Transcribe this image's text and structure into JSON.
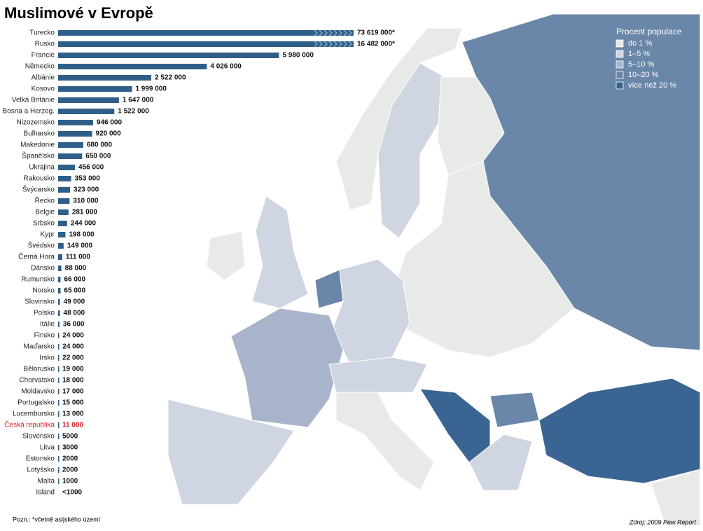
{
  "chart_data": {
    "type": "bar",
    "orientation": "horizontal",
    "title": "Muslimové v Evropě",
    "categories": [
      "Turecko",
      "Rusko",
      "Francie",
      "Německo",
      "Albánie",
      "Kosovo",
      "Velká Británie",
      "Bosna a Herzeg.",
      "Nizozemsko",
      "Bulharsko",
      "Makedonie",
      "Španělsko",
      "Ukrajina",
      "Rakousko",
      "Švýcarsko",
      "Řecko",
      "Belgie",
      "Srbsko",
      "Kypr",
      "Švédsko",
      "Černá Hora",
      "Dánsko",
      "Rumunsko",
      "Norsko",
      "Slovinsko",
      "Polsko",
      "Itálie",
      "Finsko",
      "Maďarsko",
      "Irsko",
      "Bělorusko",
      "Chorvatsko",
      "Moldavsko",
      "Portugalsko",
      "Lucembursko",
      "Česká republika",
      "Slovensko",
      "Litva",
      "Estonsko",
      "Lotyšsko",
      "Malta",
      "Island"
    ],
    "values": [
      73619000,
      16482000,
      5980000,
      4026000,
      2522000,
      1999000,
      1647000,
      1522000,
      946000,
      920000,
      680000,
      650000,
      456000,
      353000,
      323000,
      310000,
      281000,
      244000,
      198000,
      149000,
      111000,
      88000,
      66000,
      65000,
      49000,
      48000,
      36000,
      24000,
      24000,
      22000,
      19000,
      18000,
      17000,
      15000,
      13000,
      11000,
      5000,
      3000,
      2000,
      2000,
      1000,
      null
    ],
    "value_labels": [
      "73 619 000*",
      "16 482 000*",
      "5 980 000",
      "4 026 000",
      "2 522 000",
      "1 999 000",
      "1 647 000",
      "1 522 000",
      "946 000",
      "920 000",
      "680 000",
      "650 000",
      "456 000",
      "353 000",
      "323 000",
      "310 000",
      "281 000",
      "244 000",
      "198 000",
      "149 000",
      "111 000",
      "88 000",
      "66 000",
      "65 000",
      "49 000",
      "48 000",
      "36 000",
      "24 000",
      "24 000",
      "22 000",
      "19 000",
      "18 000",
      "17 000",
      "15 000",
      "13 000",
      "11 000",
      "5000",
      "3000",
      "2000",
      "2000",
      "1000",
      "<1000"
    ],
    "color": "#2f5f88",
    "xlim": [
      0,
      8000000
    ],
    "highlight": {
      "index": 35,
      "color": "#d2232a"
    },
    "legend": {
      "title": "Procent populace",
      "items": [
        {
          "label": "do 1 %",
          "color": "#e8eae8"
        },
        {
          "label": "1–5 %",
          "color": "#d0d5e2"
        },
        {
          "label": "5–10 %",
          "color": "#a8b4cb"
        },
        {
          "label": "10–20 %",
          "color": "#6a86a8"
        },
        {
          "label": "více než 20 %",
          "color": "#3a6592"
        }
      ]
    },
    "note": "Pozn.: *včetně asijského území",
    "source": "Zdroj: 2009 Pew Report"
  }
}
